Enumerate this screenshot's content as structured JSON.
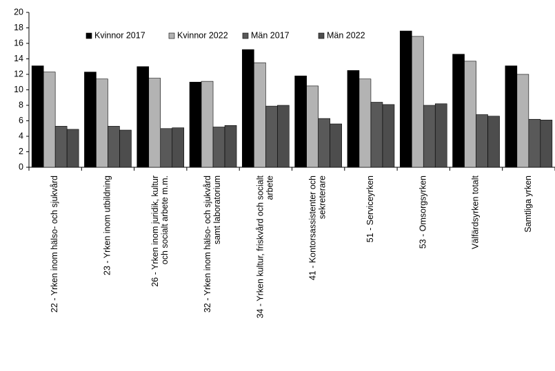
{
  "chart_data": {
    "type": "bar",
    "categories": [
      "22 -  Yrken inom hälso- och sjukvård",
      "23 -  Yrken inom utbildning",
      "26 -  Yrken  inom juridik, kultur och socialt arbete m.m.",
      "32 -  Yrken inom hälso- och sjukvård samt laboratorium",
      "34 -  Yrken kultur, friskvård och socialt arbete",
      "41 -  Kontorsassistenter och sekreterare",
      "51 -  Serviceyrken",
      "53 -  Omsorgsyrken",
      "Välfärdsyrken totalt",
      "Samtliga yrken"
    ],
    "series": [
      {
        "name": "Kvinnor 2017",
        "color": "#000000",
        "values": [
          13.1,
          12.3,
          13.0,
          11.0,
          15.2,
          11.8,
          12.5,
          17.6,
          14.6,
          13.1
        ]
      },
      {
        "name": "Kvinnor 2022",
        "color": "#b3b3b3",
        "values": [
          12.3,
          11.4,
          11.5,
          11.1,
          13.5,
          10.5,
          11.4,
          16.9,
          13.7,
          12.0
        ]
      },
      {
        "name": "Män 2017",
        "color": "#595959",
        "values": [
          5.3,
          5.3,
          5.0,
          5.2,
          7.9,
          6.3,
          8.4,
          8.0,
          6.8,
          6.2
        ]
      },
      {
        "name": "Män 2022",
        "color": "#4d4d4d",
        "values": [
          4.9,
          4.8,
          5.1,
          5.4,
          8.0,
          5.6,
          8.1,
          8.2,
          6.6,
          6.1
        ]
      }
    ],
    "ylim": [
      0,
      20
    ],
    "yticks": [
      0,
      2,
      4,
      6,
      8,
      10,
      12,
      14,
      16,
      18,
      20
    ],
    "grid": false,
    "legend": "top"
  }
}
